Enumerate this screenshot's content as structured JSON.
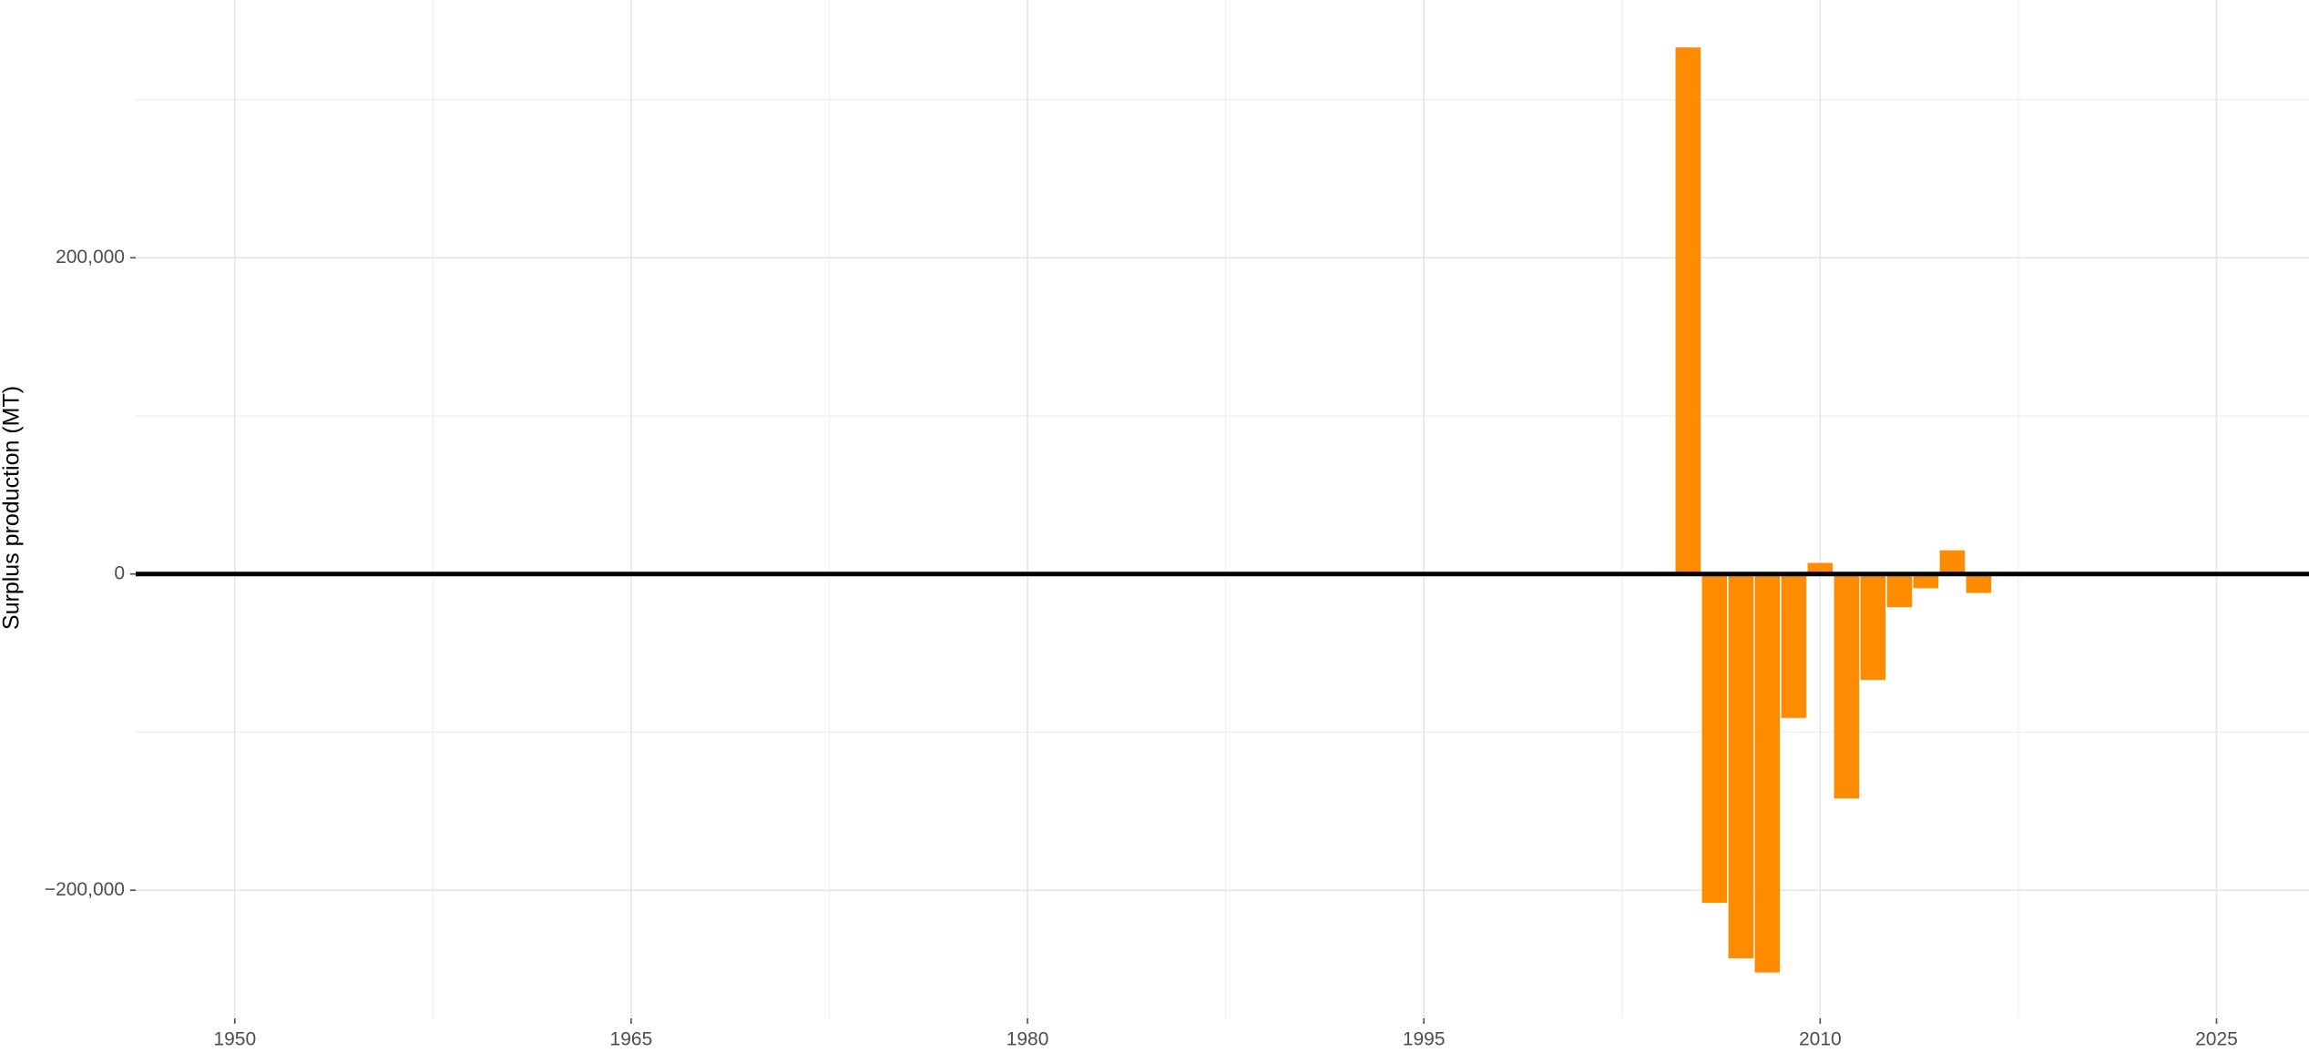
{
  "chart_data": {
    "type": "bar",
    "y_label": "Surplus production (MT)",
    "x": [
      2005,
      2006,
      2007,
      2008,
      2009,
      2010,
      2011,
      2012,
      2013,
      2014,
      2015,
      2016
    ],
    "values": [
      333000,
      -208000,
      -243000,
      -252000,
      -91000,
      7000,
      -142000,
      -67000,
      -21000,
      -9000,
      15000,
      -12000
    ],
    "color": "#ff8c00",
    "xlim": [
      1946.25,
      2028.5
    ],
    "ylim": [
      -281000,
      363000
    ],
    "xticks": [
      1950,
      1965,
      1980,
      1995,
      2010,
      2025
    ],
    "xminor_ticks": [
      1957.5,
      1972.5,
      1987.5,
      2002.5,
      2017.5
    ],
    "yticks": [
      {
        "value": -200000,
        "label": "−200,000"
      },
      {
        "value": 0,
        "label": "0"
      },
      {
        "value": 200000,
        "label": "200,000"
      }
    ],
    "yminor_ticks": [
      -100000,
      100000,
      300000
    ],
    "hline": 0,
    "bar_width": 0.95,
    "grid": true
  }
}
